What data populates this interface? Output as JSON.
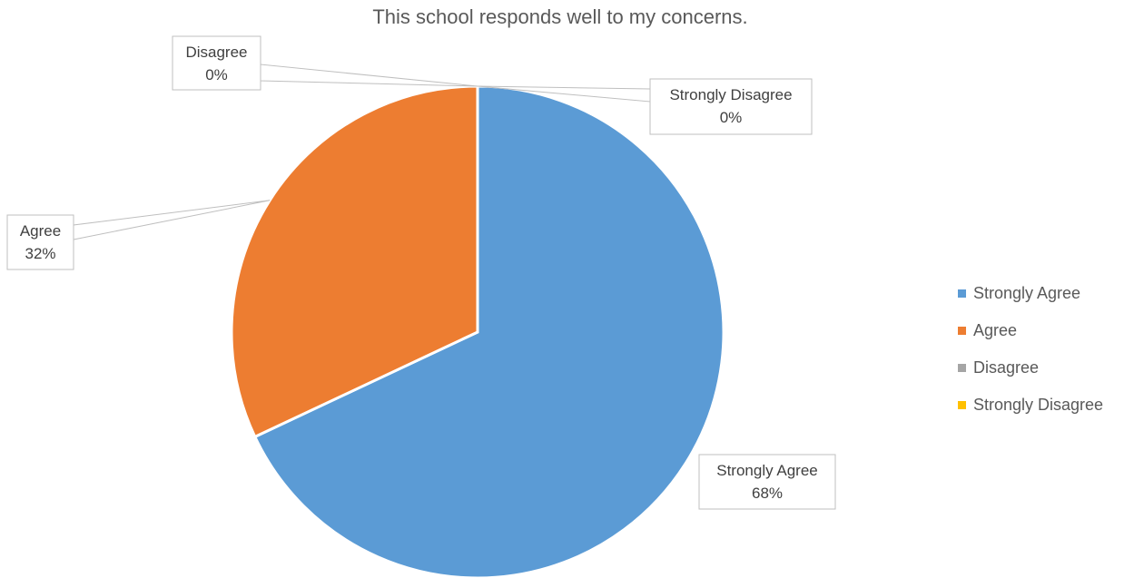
{
  "chart_data": {
    "type": "pie",
    "title": "This school responds well to my concerns.",
    "slices": [
      {
        "label": "Strongly Agree",
        "value": 68,
        "value_text": "68%",
        "color": "#5B9BD5"
      },
      {
        "label": "Agree",
        "value": 32,
        "value_text": "32%",
        "color": "#ED7D31"
      },
      {
        "label": "Disagree",
        "value": 0,
        "value_text": "0%",
        "color": "#A5A5A5"
      },
      {
        "label": "Strongly Disagree",
        "value": 0,
        "value_text": "0%",
        "color": "#FFC000"
      }
    ],
    "legend_position": "right",
    "data_labels": "callouts with category name and percentage"
  }
}
